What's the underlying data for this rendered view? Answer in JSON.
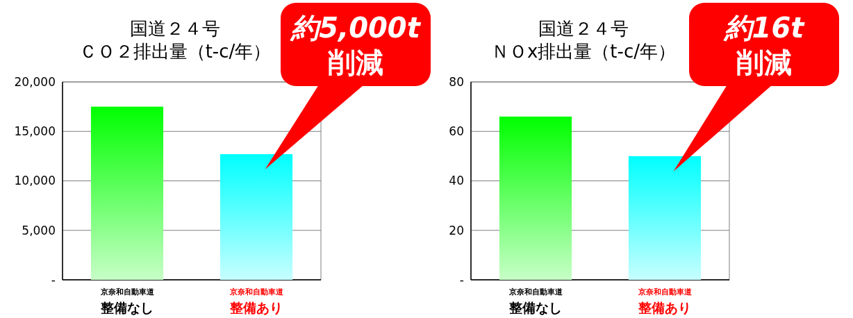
{
  "chart_data": [
    {
      "type": "bar",
      "title": "国道２４号",
      "subtitle": "ＣＯ２排出量（t-c/年）",
      "categories": [
        "京奈和自動車道整備なし",
        "京奈和自動車道整備あり"
      ],
      "values": [
        17500,
        12700
      ],
      "colors": [
        "#00ff00",
        "#00ffff"
      ],
      "ylim": [
        0,
        20000
      ],
      "yticks": [
        {
          "value": 0,
          "label": "-"
        },
        {
          "value": 5000,
          "label": "5,000"
        },
        {
          "value": 10000,
          "label": "10,000"
        },
        {
          "value": 15000,
          "label": "15,000"
        },
        {
          "value": 20000,
          "label": "20,000"
        }
      ],
      "grid": "y",
      "annotations": [
        "約5,000t\n削減"
      ]
    },
    {
      "type": "bar",
      "title": "国道２４号",
      "subtitle": "ＮＯx排出量（t-c/年）",
      "categories": [
        "京奈和自動車道整備なし",
        "京奈和自動車道整備あり"
      ],
      "values": [
        66,
        50
      ],
      "colors": [
        "#00ff00",
        "#00ffff"
      ],
      "ylim": [
        0,
        80
      ],
      "yticks": [
        {
          "value": 0,
          "label": "-"
        },
        20,
        40,
        60,
        80
      ],
      "grid": "y",
      "annotations": [
        "約16t\n削減"
      ]
    }
  ]
}
